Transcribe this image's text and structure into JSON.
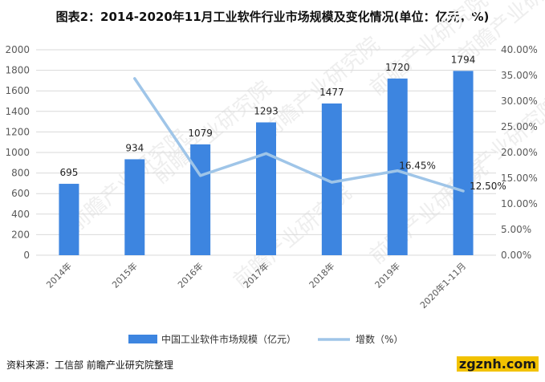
{
  "title": "图表2：2014-2020年11月工业软件行业市场规模及变化情况(单位：亿元，%)",
  "source": "资料来源：工信部 前瞻产业研究院整理",
  "watermark": {
    "text": "前瞻产业研究院",
    "bottom": "zgznh.com"
  },
  "colors": {
    "bar": "#3d85e0",
    "line": "#9fc5e8",
    "grid": "#d9d9d9",
    "text": "#595959"
  },
  "chart_data": {
    "type": "bar",
    "categories": [
      "2014年",
      "2015年",
      "2016年",
      "2017年",
      "2018年",
      "2019年",
      "2020年1-11月"
    ],
    "series": [
      {
        "name": "中国工业软件市场规模（亿元）",
        "type": "bar",
        "axis": "left",
        "values": [
          695,
          934,
          1079,
          1293,
          1477,
          1720,
          1794
        ],
        "labels": [
          "695",
          "934",
          "1079",
          "1293",
          "1477",
          "1720",
          "1794"
        ]
      },
      {
        "name": "增数（%）",
        "type": "line",
        "axis": "right",
        "values": [
          null,
          34.4,
          15.5,
          19.8,
          14.2,
          16.45,
          12.5
        ],
        "labels": [
          "",
          "",
          "",
          "",
          "",
          "16.45%",
          "12.50%"
        ]
      }
    ],
    "y_left": {
      "ylim": [
        0,
        2000
      ],
      "ticks": [
        0,
        200,
        400,
        600,
        800,
        1000,
        1200,
        1400,
        1600,
        1800,
        2000
      ],
      "tick_labels": [
        "0",
        "200",
        "400",
        "600",
        "800",
        "1000",
        "1200",
        "1400",
        "1600",
        "1800",
        "2000"
      ]
    },
    "y_right": {
      "ylim": [
        0,
        40
      ],
      "ticks": [
        0,
        5,
        10,
        15,
        20,
        25,
        30,
        35,
        40
      ],
      "tick_labels": [
        "0.00%",
        "5.00%",
        "10.00%",
        "15.00%",
        "20.00%",
        "25.00%",
        "30.00%",
        "35.00%",
        "40.00%"
      ]
    },
    "grid": true,
    "legend": "bottom"
  }
}
